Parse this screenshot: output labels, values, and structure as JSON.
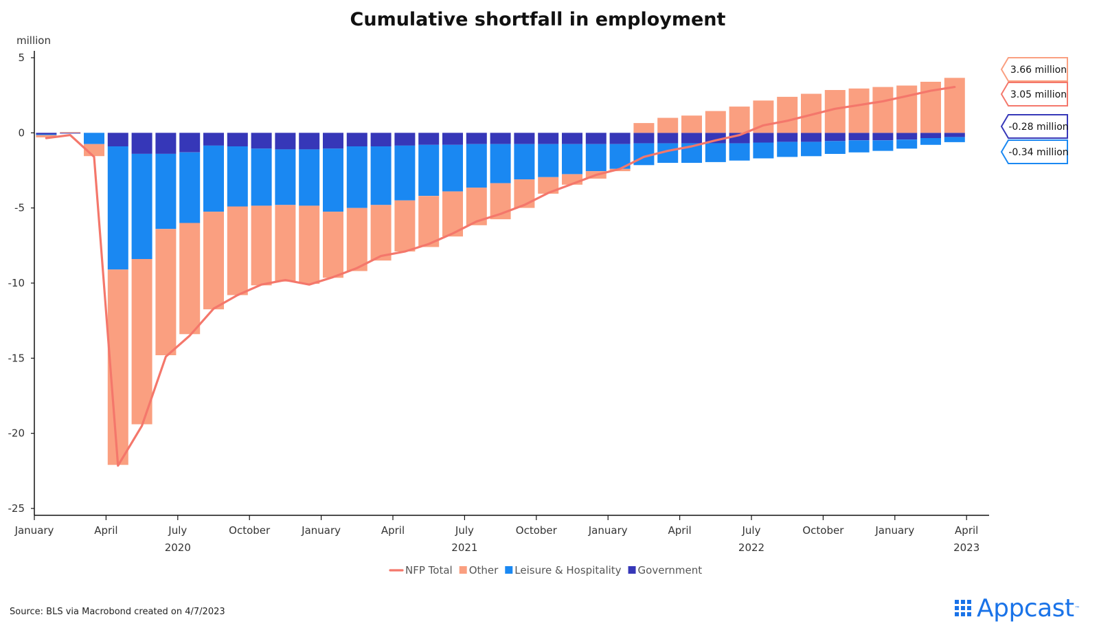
{
  "chart_data": {
    "type": "bar",
    "stacked": true,
    "title": "Cumulative shortfall in employment",
    "ylabel": "million",
    "ylim": [
      -25,
      5
    ],
    "yticks": [
      5,
      0,
      -5,
      -10,
      -15,
      -20,
      -25
    ],
    "grid": false,
    "legend_position": "bottom",
    "x": [
      "2020-01",
      "2020-02",
      "2020-03",
      "2020-04",
      "2020-05",
      "2020-06",
      "2020-07",
      "2020-08",
      "2020-09",
      "2020-10",
      "2020-11",
      "2020-12",
      "2021-01",
      "2021-02",
      "2021-03",
      "2021-04",
      "2021-05",
      "2021-06",
      "2021-07",
      "2021-08",
      "2021-09",
      "2021-10",
      "2021-11",
      "2021-12",
      "2022-01",
      "2022-02",
      "2022-03",
      "2022-04",
      "2022-05",
      "2022-06",
      "2022-07",
      "2022-08",
      "2022-09",
      "2022-10",
      "2022-11",
      "2022-12",
      "2023-01",
      "2023-02",
      "2023-03"
    ],
    "x_tick_labels": [
      {
        "month": "2020-01",
        "label": "January",
        "year": "2020"
      },
      {
        "month": "2020-04",
        "label": "April",
        "year": ""
      },
      {
        "month": "2020-07",
        "label": "July",
        "year": "2020"
      },
      {
        "month": "2020-10",
        "label": "October",
        "year": ""
      },
      {
        "month": "2021-01",
        "label": "January",
        "year": ""
      },
      {
        "month": "2021-04",
        "label": "April",
        "year": ""
      },
      {
        "month": "2021-07",
        "label": "July",
        "year": "2021"
      },
      {
        "month": "2021-10",
        "label": "October",
        "year": ""
      },
      {
        "month": "2022-01",
        "label": "January",
        "year": ""
      },
      {
        "month": "2022-04",
        "label": "April",
        "year": ""
      },
      {
        "month": "2022-07",
        "label": "July",
        "year": "2022"
      },
      {
        "month": "2022-10",
        "label": "October",
        "year": ""
      },
      {
        "month": "2023-01",
        "label": "January",
        "year": ""
      },
      {
        "month": "2023-04",
        "label": "April",
        "year": "2023"
      }
    ],
    "series": [
      {
        "name": "NFP Total",
        "kind": "line",
        "color": "#f4776b",
        "values": [
          -0.35,
          -0.15,
          -1.6,
          -22.15,
          -19.5,
          -14.9,
          -13.5,
          -11.7,
          -10.8,
          -10.1,
          -9.8,
          -10.1,
          -9.6,
          -9.0,
          -8.2,
          -7.9,
          -7.4,
          -6.7,
          -5.9,
          -5.4,
          -4.8,
          -4.0,
          -3.4,
          -2.8,
          -2.4,
          -1.6,
          -1.2,
          -0.9,
          -0.5,
          -0.15,
          0.5,
          0.8,
          1.2,
          1.6,
          1.85,
          2.1,
          2.45,
          2.8,
          3.05
        ]
      },
      {
        "name": "Other",
        "kind": "bar",
        "color": "#fa9f80",
        "values": [
          -0.15,
          0.05,
          -0.8,
          -13.0,
          -11.0,
          -8.4,
          -7.4,
          -6.5,
          -5.9,
          -5.3,
          -5.1,
          -5.2,
          -4.4,
          -4.2,
          -3.7,
          -3.4,
          -3.4,
          -3.0,
          -2.5,
          -2.4,
          -1.9,
          -1.1,
          -0.7,
          -0.5,
          -0.15,
          0.65,
          1.0,
          1.15,
          1.45,
          1.75,
          2.15,
          2.4,
          2.6,
          2.85,
          2.95,
          3.05,
          3.15,
          3.4,
          3.66
        ]
      },
      {
        "name": "Leisure & Hospitality",
        "kind": "bar",
        "color": "#1a88f2",
        "values": [
          -0.05,
          0.0,
          -0.75,
          -8.2,
          -7.0,
          -5.0,
          -4.7,
          -4.4,
          -4.0,
          -3.8,
          -3.7,
          -3.75,
          -4.2,
          -4.1,
          -3.9,
          -3.65,
          -3.4,
          -3.1,
          -2.9,
          -2.6,
          -2.35,
          -2.2,
          -2.0,
          -1.8,
          -1.65,
          -1.45,
          -1.3,
          -1.3,
          -1.25,
          -1.15,
          -1.05,
          -1.0,
          -0.95,
          -0.85,
          -0.8,
          -0.7,
          -0.6,
          -0.45,
          -0.34
        ]
      },
      {
        "name": "Government",
        "kind": "bar",
        "color": "#3637b8",
        "values": [
          -0.1,
          -0.05,
          0.0,
          -0.9,
          -1.4,
          -1.4,
          -1.3,
          -0.85,
          -0.9,
          -1.05,
          -1.1,
          -1.1,
          -1.05,
          -0.9,
          -0.9,
          -0.85,
          -0.8,
          -0.8,
          -0.75,
          -0.75,
          -0.75,
          -0.75,
          -0.75,
          -0.75,
          -0.75,
          -0.7,
          -0.7,
          -0.7,
          -0.7,
          -0.7,
          -0.65,
          -0.6,
          -0.6,
          -0.55,
          -0.5,
          -0.5,
          -0.45,
          -0.35,
          -0.28
        ]
      }
    ],
    "callouts": [
      {
        "text": "3.66 million",
        "value": 3.66,
        "border": "#fa9f80"
      },
      {
        "text": "3.05 million",
        "value": 3.05,
        "border": "#f4776b"
      },
      {
        "text": "-0.28 million",
        "value": -0.28,
        "border": "#3637b8"
      },
      {
        "text": "-0.34 million",
        "value": -0.34,
        "border": "#1a88f2"
      }
    ]
  },
  "footer": {
    "source": "Source: BLS via Macrobond created on 4/7/2023",
    "brand": "Appcast",
    "brand_mark": "™"
  }
}
